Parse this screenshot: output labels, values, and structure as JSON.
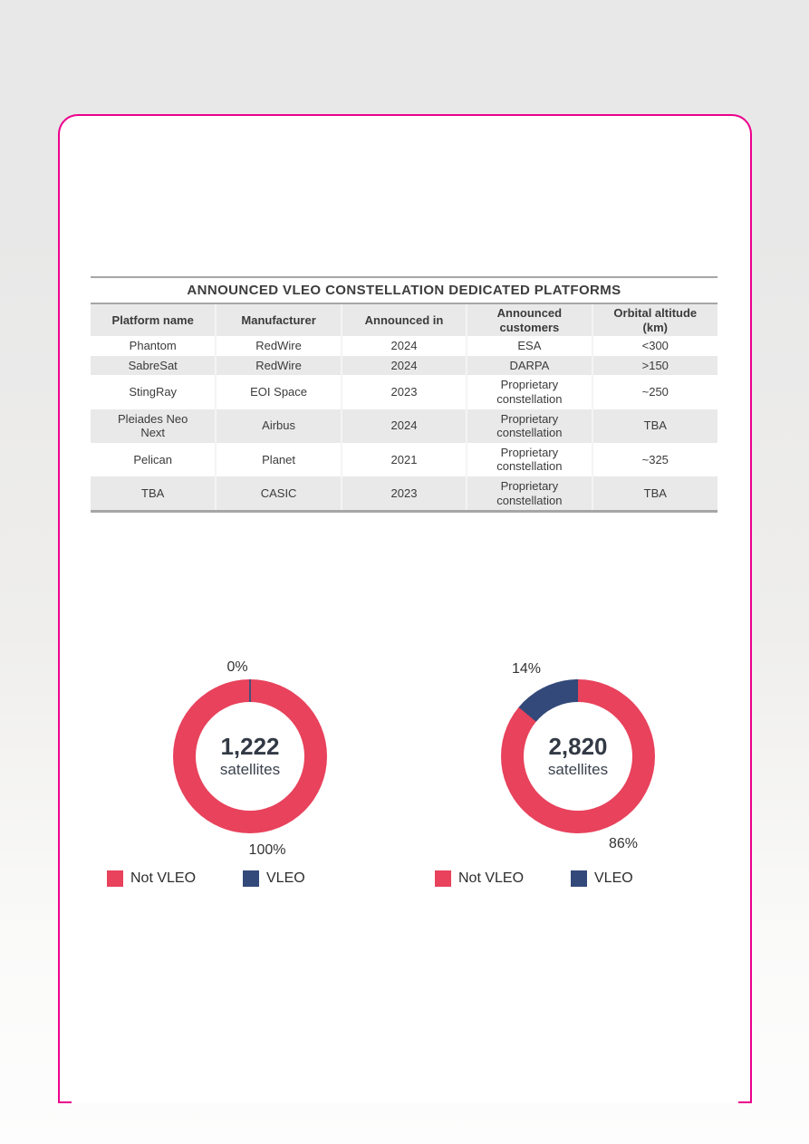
{
  "page": {
    "accent_color": "#ec008c",
    "background_top": "#e8e8e8",
    "background_bottom": "#fdfdfd"
  },
  "table": {
    "title": "ANNOUNCED VLEO CONSTELLATION DEDICATED PLATFORMS",
    "columns": [
      "Platform name",
      "Manufacturer",
      "Announced in",
      "Announced customers",
      "Orbital altitude (km)"
    ],
    "rows": [
      [
        "Phantom",
        "RedWire",
        "2024",
        "ESA",
        "<300"
      ],
      [
        "SabreSat",
        "RedWire",
        "2024",
        "DARPA",
        ">150"
      ],
      [
        "StingRay",
        "EOI Space",
        "2023",
        "Proprietary constellation",
        "~250"
      ],
      [
        "Pleiades Neo Next",
        "Airbus",
        "2024",
        "Proprietary constellation",
        "TBA"
      ],
      [
        "Pelican",
        "Planet",
        "2021",
        "Proprietary constellation",
        "~325"
      ],
      [
        "TBA",
        "CASIC",
        "2023",
        "Proprietary constellation",
        "TBA"
      ]
    ]
  },
  "chart_data": [
    {
      "type": "pie",
      "donut": true,
      "center_value": "1,222",
      "center_unit": "satellites",
      "legend_position": "bottom",
      "series": [
        {
          "name": "Not VLEO",
          "pct": 100,
          "label": "100%",
          "color": "#e8425c"
        },
        {
          "name": "VLEO",
          "pct": 0,
          "label": "0%",
          "color": "#33497a"
        }
      ]
    },
    {
      "type": "pie",
      "donut": true,
      "center_value": "2,820",
      "center_unit": "satellites",
      "legend_position": "bottom",
      "series": [
        {
          "name": "Not VLEO",
          "pct": 86,
          "label": "86%",
          "color": "#e8425c"
        },
        {
          "name": "VLEO",
          "pct": 14,
          "label": "14%",
          "color": "#33497a"
        }
      ]
    }
  ]
}
